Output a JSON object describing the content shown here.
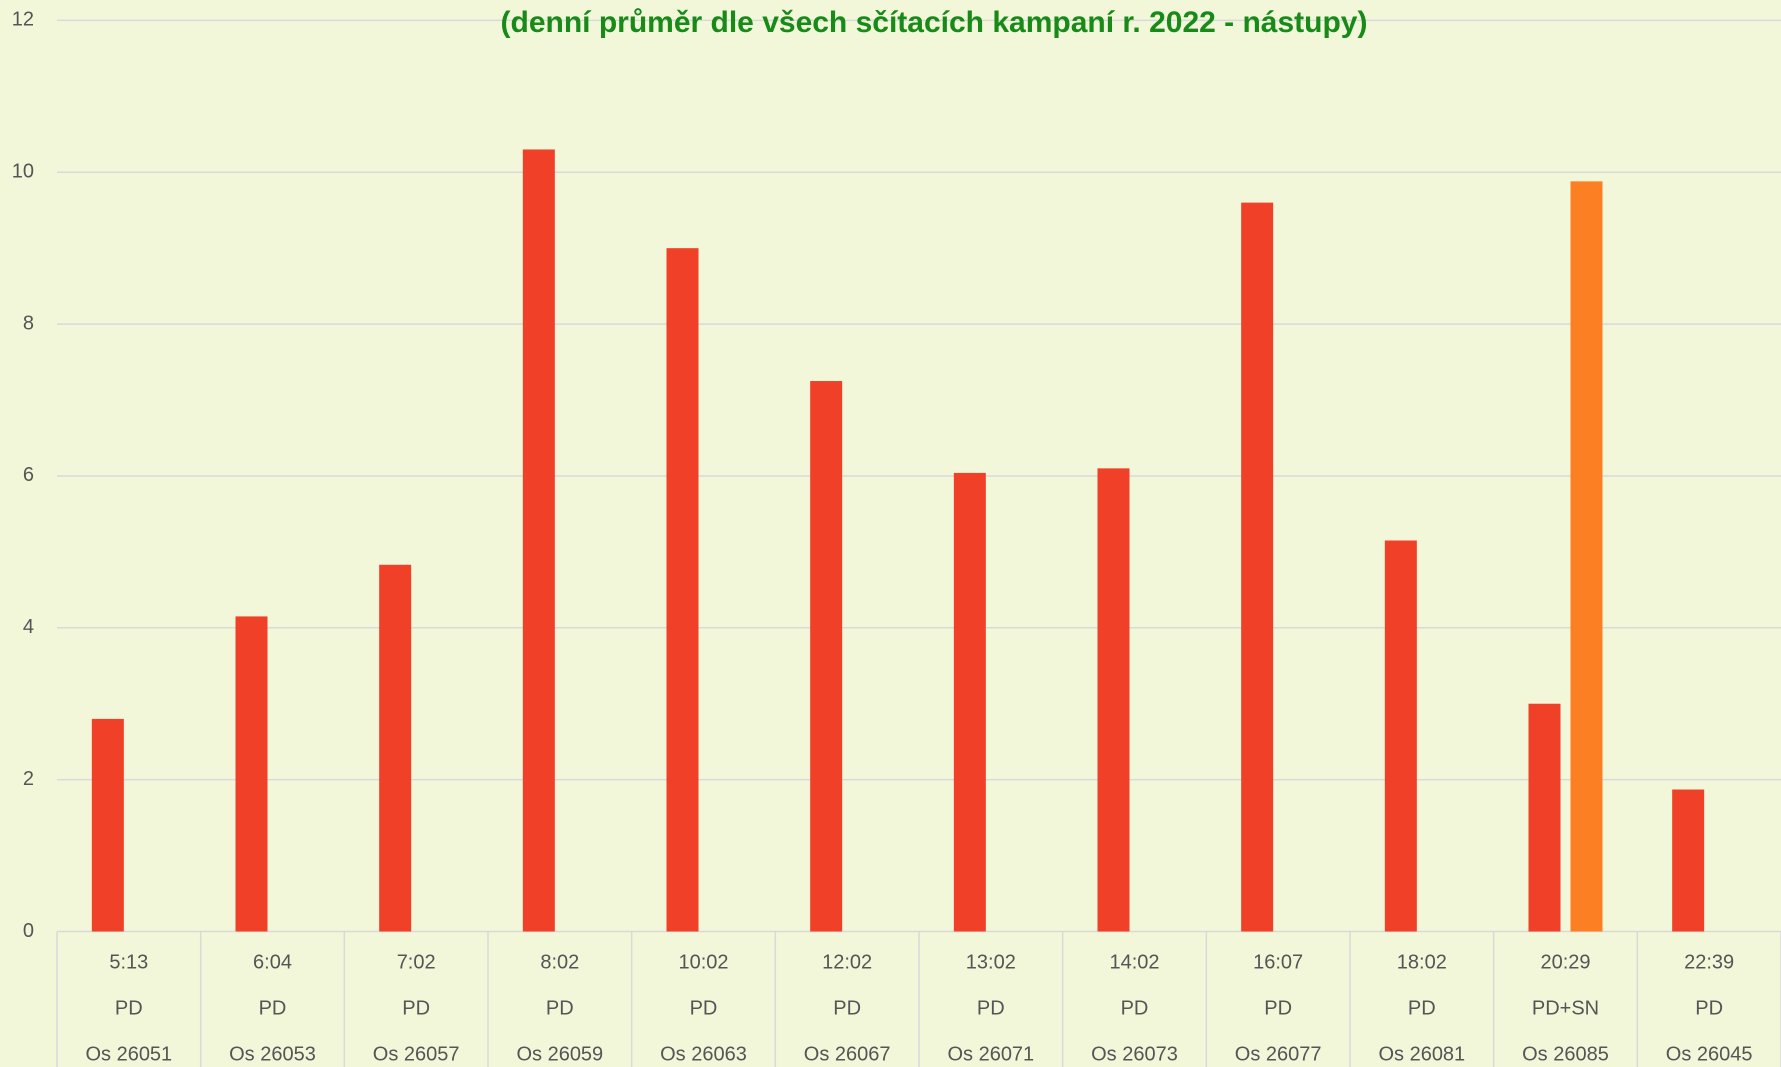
{
  "chart_data": {
    "type": "bar",
    "subtitle": "(denní průměr dle všech sčítacích kampaní r. 2022 - nástupy)",
    "categories": [
      [
        "5:13",
        "PD",
        "Os 26051"
      ],
      [
        "6:04",
        "PD",
        "Os 26053"
      ],
      [
        "7:02",
        "PD",
        "Os 26057"
      ],
      [
        "8:02",
        "PD",
        "Os 26059"
      ],
      [
        "10:02",
        "PD",
        "Os 26063"
      ],
      [
        "12:02",
        "PD",
        "Os 26067"
      ],
      [
        "13:02",
        "PD",
        "Os 26071"
      ],
      [
        "14:02",
        "PD",
        "Os 26073"
      ],
      [
        "16:07",
        "PD",
        "Os 26077"
      ],
      [
        "18:02",
        "PD",
        "Os 26081"
      ],
      [
        "20:29",
        "PD+SN",
        "Os 26085"
      ],
      [
        "22:39",
        "PD",
        "Os 26045"
      ]
    ],
    "series": [
      {
        "color": "#f04128",
        "values": [
          2.8,
          4.15,
          4.83,
          10.3,
          9.0,
          7.25,
          6.04,
          6.1,
          9.6,
          5.15,
          3.0,
          1.87
        ]
      },
      {
        "color": "#fd7f23",
        "values": [
          null,
          null,
          null,
          null,
          null,
          null,
          null,
          null,
          null,
          null,
          9.88,
          null
        ]
      }
    ],
    "ylim": [
      0,
      12
    ],
    "yticks": [
      0,
      2,
      4,
      6,
      8,
      10,
      12
    ],
    "grid": true
  }
}
